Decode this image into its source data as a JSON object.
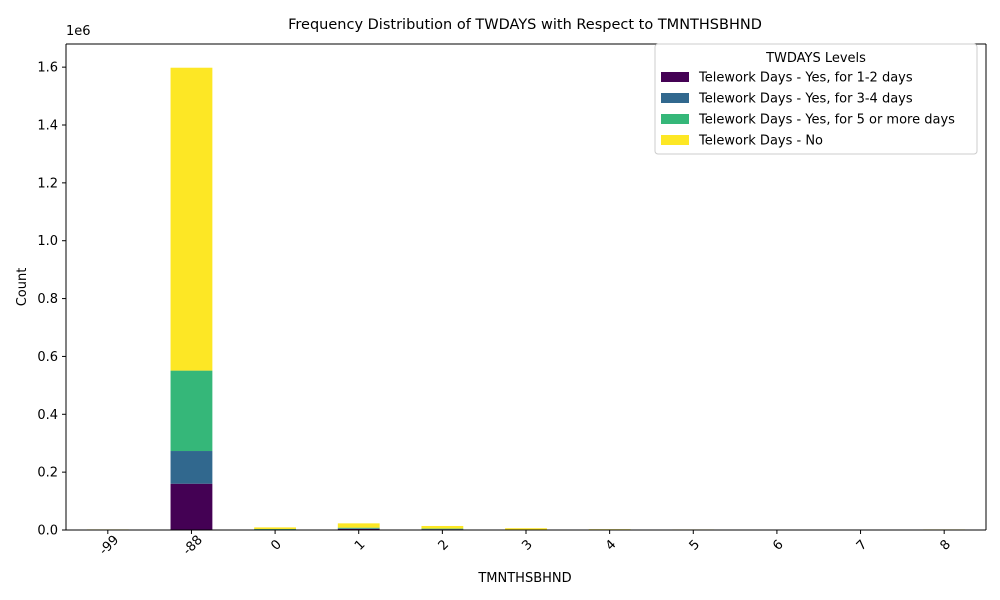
{
  "chart_data": {
    "type": "bar",
    "stacked": true,
    "title": "Frequency Distribution of TWDAYS with Respect to TMNTHSBHND",
    "xlabel": "TMNTHSBHND",
    "ylabel": "Count",
    "y_offset_label": "1e6",
    "ylim": [
      0,
      1680000
    ],
    "yticks": [
      0,
      200000,
      400000,
      600000,
      800000,
      1000000,
      1200000,
      1400000,
      1600000
    ],
    "ytick_labels": [
      "0.0",
      "0.2",
      "0.4",
      "0.6",
      "0.8",
      "1.0",
      "1.2",
      "1.4",
      "1.6"
    ],
    "categories": [
      "-99",
      "-88",
      "0",
      "1",
      "2",
      "3",
      "4",
      "5",
      "6",
      "7",
      "8"
    ],
    "grid": false,
    "legend_title": "TWDAYS Levels",
    "legend_position": "top-right",
    "series": [
      {
        "name": "Telework Days - Yes, for 1-2 days",
        "color": "#440154",
        "values": [
          200,
          160000,
          1500,
          4000,
          2500,
          800,
          300,
          200,
          100,
          50,
          200
        ]
      },
      {
        "name": "Telework Days - Yes, for 3-4 days",
        "color": "#31688e",
        "values": [
          100,
          113000,
          700,
          1500,
          900,
          300,
          100,
          100,
          50,
          20,
          100
        ]
      },
      {
        "name": "Telework Days - Yes, for 5 or more days",
        "color": "#35b779",
        "values": [
          200,
          278000,
          1300,
          2500,
          1500,
          500,
          200,
          100,
          100,
          30,
          200
        ]
      },
      {
        "name": "Telework Days - No",
        "color": "#fde725",
        "values": [
          1500,
          1047000,
          5500,
          15000,
          9000,
          4500,
          2000,
          1500,
          1000,
          600,
          1500
        ]
      }
    ]
  }
}
